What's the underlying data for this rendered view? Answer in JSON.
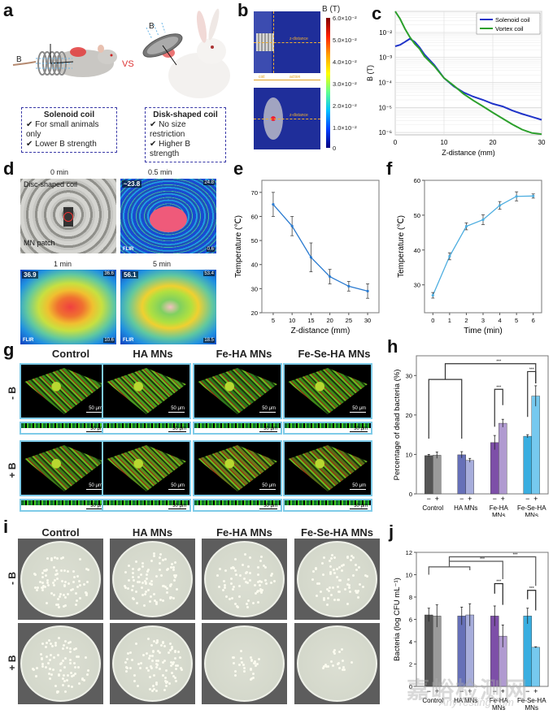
{
  "panels": {
    "a": {
      "letter": "a",
      "vs_label": "VS",
      "b_label_left": "B",
      "b_label_right": "B",
      "axis_y": "y",
      "axis_z": "z",
      "solenoid_box": {
        "title": "Solenoid coil",
        "items": [
          "For small animals only",
          "Lower B strength"
        ]
      },
      "disk_box": {
        "title": "Disk-shaped coil",
        "items": [
          "No size restriction",
          "Higher B strength"
        ]
      },
      "check_glyph": "✔"
    },
    "b": {
      "letter": "b",
      "colorbar_title": "B (T)",
      "colorbar_ticks": [
        "6.0×10⁻²",
        "5.0×10⁻²",
        "4.0×10⁻²",
        "3.0×10⁻²",
        "2.0×10⁻²",
        "1.0×10⁻²",
        "0"
      ],
      "z_distance_label": "z-distance",
      "coil_label": "coil",
      "action_label": "action"
    },
    "d": {
      "letter": "d",
      "times": [
        "0 min",
        "0.5 min",
        "1 min",
        "5 min"
      ],
      "annot_coil": "Disc-shaped coil",
      "annot_patch": "MN patch",
      "readings": [
        "~23.8",
        "36.9",
        "56.1"
      ],
      "max_vals": [
        "24.8",
        "36.6",
        "53.4"
      ],
      "min_vals": [
        "0.6",
        "10.6",
        "18.5"
      ],
      "flir": "FLIR"
    },
    "g": {
      "letter": "g",
      "columns": [
        "Control",
        "HA MNs",
        "Fe-HA MNs",
        "Fe-Se-HA MNs"
      ],
      "rows": [
        "- B",
        "+ B"
      ],
      "scale_3d": "50 μm",
      "scale_slice": "30 μm"
    },
    "i": {
      "letter": "i",
      "columns": [
        "Control",
        "HA MNs",
        "Fe-HA MNs",
        "Fe-Se-HA MNs"
      ],
      "rows": [
        "- B",
        "+ B"
      ],
      "colony_density": [
        [
          0.9,
          0.95,
          0.75,
          0.75
        ],
        [
          0.9,
          1.0,
          0.3,
          0.22
        ]
      ]
    }
  },
  "chart_data": [
    {
      "id": "c",
      "letter": "c",
      "type": "line",
      "title": "",
      "xlabel": "Z-distance (mm)",
      "ylabel": "B (T)",
      "yscale": "log",
      "xlim": [
        0,
        30
      ],
      "ylim": [
        8e-07,
        0.07
      ],
      "xticks": [
        "0",
        "10",
        "20",
        "30"
      ],
      "yticks": [
        "10⁻²",
        "10⁻³",
        "10⁻⁴",
        "10⁻⁵",
        "10⁻⁶"
      ],
      "ytick_values": [
        0.01,
        0.001,
        0.0001,
        1e-05,
        1e-06
      ],
      "grid": true,
      "legend": "top-right",
      "series": [
        {
          "name": "Solenoid coil",
          "color": "#1f33c8",
          "x": [
            0,
            1,
            2,
            3,
            4,
            5,
            6,
            8,
            10,
            12,
            14,
            16,
            18,
            20,
            22,
            24,
            26,
            28,
            30
          ],
          "y": [
            0.0028,
            0.0032,
            0.0042,
            0.0056,
            0.0042,
            0.0025,
            0.0013,
            0.0005,
            0.00015,
            7e-05,
            4e-05,
            2.7e-05,
            2e-05,
            1.4e-05,
            1.1e-05,
            7.5e-06,
            5.5e-06,
            4.2e-06,
            3.2e-06
          ]
        },
        {
          "name": "Vortex coil",
          "color": "#2ca02c",
          "x": [
            0,
            1,
            2,
            3,
            4,
            5,
            6,
            8,
            10,
            12,
            14,
            16,
            18,
            20,
            22,
            24,
            26,
            28,
            30
          ],
          "y": [
            0.07,
            0.035,
            0.014,
            0.0065,
            0.0035,
            0.0022,
            0.0011,
            0.00045,
            0.00015,
            7.5e-05,
            3.5e-05,
            1.9e-05,
            1.1e-05,
            6.2e-06,
            3.6e-06,
            2.1e-06,
            1.3e-06,
            9.5e-07,
            8.5e-07
          ]
        }
      ]
    },
    {
      "id": "e",
      "letter": "e",
      "type": "line",
      "xlabel": "Z-distance (mm)",
      "ylabel": "Temperature (℃)",
      "xlim": [
        2,
        33
      ],
      "ylim": [
        20,
        75
      ],
      "xticks": [
        5,
        10,
        15,
        20,
        25,
        30
      ],
      "yticks": [
        20,
        30,
        40,
        50,
        60,
        70
      ],
      "color": "#2b7bd0",
      "x": [
        5,
        10,
        15,
        20,
        25,
        30
      ],
      "y": [
        65,
        56,
        43,
        35,
        31,
        29
      ],
      "err": [
        5,
        4,
        6,
        3,
        2,
        3
      ]
    },
    {
      "id": "f",
      "letter": "f",
      "type": "line",
      "xlabel": "Time (min)",
      "ylabel": "Temperature (℃)",
      "xlim": [
        -0.5,
        6.5
      ],
      "ylim": [
        22,
        60
      ],
      "xticks": [
        0,
        1,
        2,
        3,
        4,
        5,
        6
      ],
      "yticks": [
        30,
        40,
        50,
        60
      ],
      "color": "#4eaee0",
      "x": [
        0,
        1,
        2,
        3,
        4,
        5,
        6
      ],
      "y": [
        27,
        38.2,
        46.8,
        48.7,
        52.8,
        55.4,
        55.5
      ],
      "err": [
        0.8,
        1.0,
        1.0,
        1.4,
        1.1,
        1.3,
        0.6
      ]
    },
    {
      "id": "h",
      "letter": "h",
      "type": "bar",
      "xlabel": "",
      "ylabel": "Percentage of dead bacteria (%)",
      "ylim": [
        0,
        35
      ],
      "yticks": [
        0,
        10,
        20,
        30
      ],
      "categories": [
        "Control",
        "HA MNs",
        "Fe-HA MNs",
        "Fe-Se-HA MNs"
      ],
      "sub_labels": [
        "−",
        "+"
      ],
      "series": [
        {
          "name": "- B",
          "values": [
            9.7,
            9.9,
            13.0,
            14.6
          ],
          "err": [
            0.3,
            0.8,
            1.8,
            0.4
          ],
          "colors": [
            "#555555",
            "#6670b8",
            "#7d4fa8",
            "#3aaee0"
          ]
        },
        {
          "name": "+ B",
          "values": [
            9.8,
            8.5,
            17.9,
            24.8
          ],
          "err": [
            0.8,
            0.5,
            1.0,
            2.6
          ],
          "colors": [
            "#9a9a9a",
            "#a7addb",
            "#b09ad0",
            "#76c9ef"
          ]
        }
      ],
      "significance": [
        "***",
        "***",
        "***"
      ]
    },
    {
      "id": "j",
      "letter": "j",
      "type": "bar",
      "xlabel": "",
      "ylabel": "Bacteria (log CFU mL⁻¹)",
      "ylim": [
        0,
        12
      ],
      "yticks": [
        0,
        2,
        4,
        6,
        8,
        10,
        12
      ],
      "categories": [
        "Control",
        "HA MNs",
        "Fe-HA MNs",
        "Fe-Se-HA MNs"
      ],
      "sub_labels": [
        "−",
        "+"
      ],
      "series": [
        {
          "name": "- B",
          "values": [
            6.4,
            6.3,
            6.3,
            6.3
          ],
          "err": [
            0.6,
            0.8,
            0.9,
            0.7
          ],
          "colors": [
            "#555555",
            "#6670b8",
            "#7d4fa8",
            "#3aaee0"
          ]
        },
        {
          "name": "+ B",
          "values": [
            6.3,
            6.4,
            4.5,
            3.5
          ],
          "err": [
            1.0,
            1.0,
            1.0,
            0.05
          ],
          "colors": [
            "#9a9a9a",
            "#a7addb",
            "#b09ad0",
            "#76c9ef"
          ]
        }
      ],
      "significance": [
        "***",
        "***",
        "***",
        "***"
      ]
    }
  ],
  "watermark": {
    "cn": "嘉峪检测网",
    "en": "AnyTesting.com"
  }
}
